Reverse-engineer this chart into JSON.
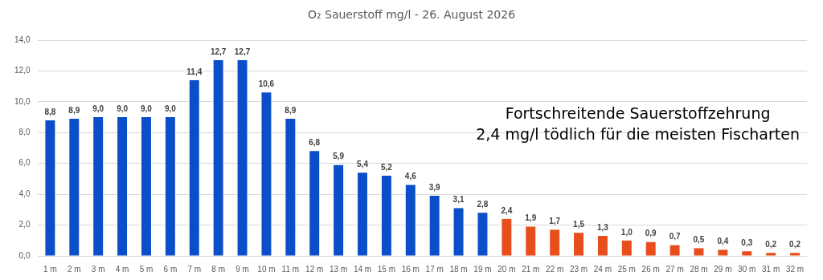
{
  "chart_data": {
    "type": "bar",
    "title": "O₂ Sauerstoff  mg/l - 26. August 2026",
    "annotations": [
      "Fortschreitende Sauerstoffzehrung",
      "2,4 mg/l tödlich für die meisten Fischarten"
    ],
    "categories": [
      "1 m",
      "2 m",
      "3 m",
      "4 m",
      "5 m",
      "6 m",
      "7 m",
      "8 m",
      "9 m",
      "10 m",
      "11 m",
      "12 m",
      "13 m",
      "14 m",
      "15 m",
      "16 m",
      "17 m",
      "18 m",
      "19 m",
      "20 m",
      "21 m",
      "22 m",
      "23 m",
      "24 m",
      "25 m",
      "26 m",
      "27 m",
      "28 m",
      "29 m",
      "30 m",
      "31 m",
      "32 m"
    ],
    "values": [
      8.8,
      8.9,
      9.0,
      9.0,
      9.0,
      9.0,
      11.4,
      12.7,
      12.7,
      10.6,
      8.9,
      6.8,
      5.9,
      5.4,
      5.2,
      4.6,
      3.9,
      3.1,
      2.8,
      2.4,
      1.9,
      1.7,
      1.5,
      1.3,
      1.0,
      0.9,
      0.7,
      0.5,
      0.4,
      0.3,
      0.2,
      0.2
    ],
    "value_labels": [
      "8,8",
      "8,9",
      "9,0",
      "9,0",
      "9,0",
      "9,0",
      "11,4",
      "12,7",
      "12,7",
      "10,6",
      "8,9",
      "6,8",
      "5,9",
      "5,4",
      "5,2",
      "4,6",
      "3,9",
      "3,1",
      "2,8",
      "2,4",
      "1,9",
      "1,7",
      "1,5",
      "1,3",
      "1,0",
      "0,9",
      "0,7",
      "0,5",
      "0,4",
      "0,3",
      "0,2",
      "0,2"
    ],
    "colors": [
      "#0a4fc8",
      "#0a4fc8",
      "#0a4fc8",
      "#0a4fc8",
      "#0a4fc8",
      "#0a4fc8",
      "#0a4fc8",
      "#0a4fc8",
      "#0a4fc8",
      "#0a4fc8",
      "#0a4fc8",
      "#0a4fc8",
      "#0a4fc8",
      "#0a4fc8",
      "#0a4fc8",
      "#0a4fc8",
      "#0a4fc8",
      "#0a4fc8",
      "#0a4fc8",
      "#e84e1b",
      "#e84e1b",
      "#e84e1b",
      "#e84e1b",
      "#e84e1b",
      "#e84e1b",
      "#e84e1b",
      "#e84e1b",
      "#e84e1b",
      "#e84e1b",
      "#e84e1b",
      "#e84e1b",
      "#e84e1b"
    ],
    "ylim": [
      0,
      14
    ],
    "yticks": [
      {
        "value": 0,
        "label": "0,0"
      },
      {
        "value": 2,
        "label": "2,0"
      },
      {
        "value": 4,
        "label": "4,0"
      },
      {
        "value": 6,
        "label": "6,0"
      },
      {
        "value": 8,
        "label": "8,0"
      },
      {
        "value": 10,
        "label": "10,0"
      },
      {
        "value": 12,
        "label": "12,0"
      },
      {
        "value": 14,
        "label": "14,0"
      }
    ],
    "grid": "y",
    "legend": false
  }
}
